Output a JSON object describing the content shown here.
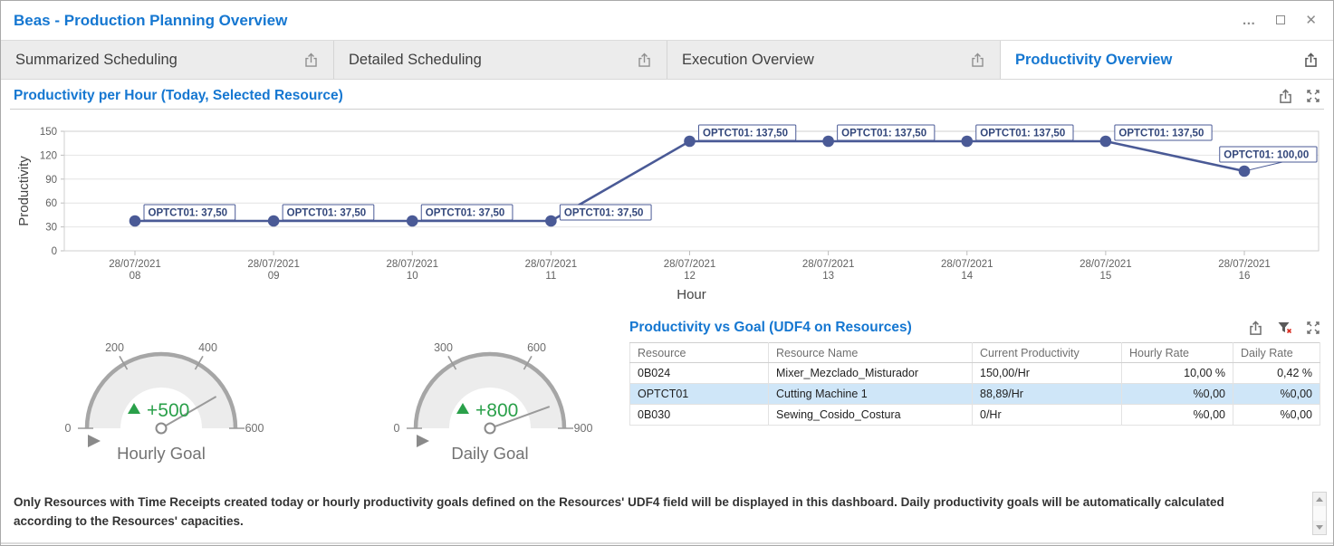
{
  "window": {
    "title": "Beas - Production Planning Overview",
    "controls": {
      "more": "…",
      "close": "✕"
    }
  },
  "tabs": {
    "items": [
      {
        "label": "Summarized Scheduling"
      },
      {
        "label": "Detailed Scheduling"
      },
      {
        "label": "Execution Overview"
      },
      {
        "label": "Productivity Overview"
      }
    ],
    "active": "Productivity Overview"
  },
  "chart_section": {
    "title": "Productivity per Hour (Today, Selected Resource)"
  },
  "chart_data": [
    {
      "type": "line",
      "title": "Productivity per Hour (Today, Selected Resource)",
      "xlabel": "Hour",
      "ylabel": "Productivity",
      "ylim": [
        0,
        150
      ],
      "yticks": [
        0,
        30,
        60,
        90,
        120,
        150
      ],
      "grid": true,
      "legend": "none",
      "x_date": "28/07/2021",
      "x": [
        "08",
        "09",
        "10",
        "11",
        "12",
        "13",
        "14",
        "15",
        "16"
      ],
      "series": [
        {
          "name": "OPTCT01",
          "values": [
            37.5,
            37.5,
            37.5,
            37.5,
            137.5,
            137.5,
            137.5,
            137.5,
            100
          ],
          "point_labels": [
            "OPTCT01: 37,50",
            "OPTCT01: 37,50",
            "OPTCT01: 37,50",
            "OPTCT01: 37,50",
            "OPTCT01: 137,50",
            "OPTCT01: 137,50",
            "OPTCT01: 137,50",
            "OPTCT01: 137,50",
            "OPTCT01: 100,00"
          ]
        }
      ],
      "line_color": "#4a5a96"
    },
    {
      "type": "gauge",
      "title": "Hourly Goal",
      "min": 0,
      "max": 600,
      "ticks": [
        0,
        200,
        400,
        600
      ],
      "value": 500,
      "delta_label": "+500",
      "delta_color": "#2aa04a"
    },
    {
      "type": "gauge",
      "title": "Daily Goal",
      "min": 0,
      "max": 900,
      "ticks": [
        0,
        300,
        600,
        900
      ],
      "value": 800,
      "delta_label": "+800",
      "delta_color": "#2aa04a"
    }
  ],
  "table": {
    "title": "Productivity vs Goal (UDF4 on Resources)",
    "columns": [
      "Resource",
      "Resource Name",
      "Current Productivity",
      "Hourly Rate",
      "Daily Rate"
    ],
    "col_align": [
      "left",
      "left",
      "left",
      "right",
      "right"
    ],
    "rows": [
      [
        "0B024",
        "Mixer_Mezclado_Misturador",
        "150,00/Hr",
        "10,00 %",
        "0,42 %"
      ],
      [
        "OPTCT01",
        "Cutting Machine 1",
        "88,89/Hr",
        "%0,00",
        "%0,00"
      ],
      [
        "0B030",
        "Sewing_Cosido_Costura",
        "0/Hr",
        "%0,00",
        "%0,00"
      ]
    ],
    "selected_row": 1
  },
  "note": {
    "text": "Only Resources with Time Receipts created today or hourly productivity goals defined on the Resources' UDF4 field will be displayed in this dashboard. Daily productivity goals will be automatically calculated according to the Resources' capacities."
  },
  "icons": [
    "export-icon",
    "expand-icon",
    "clear-filter-icon",
    "more-icon",
    "maximize-icon",
    "close-icon",
    "scroll-up-icon",
    "scroll-down-icon"
  ],
  "colors": {
    "accent_blue": "#1577d1",
    "line_navy": "#4a5a96",
    "selected_row_blue": "#cfe6f8",
    "delta_green": "#2aa04a"
  }
}
